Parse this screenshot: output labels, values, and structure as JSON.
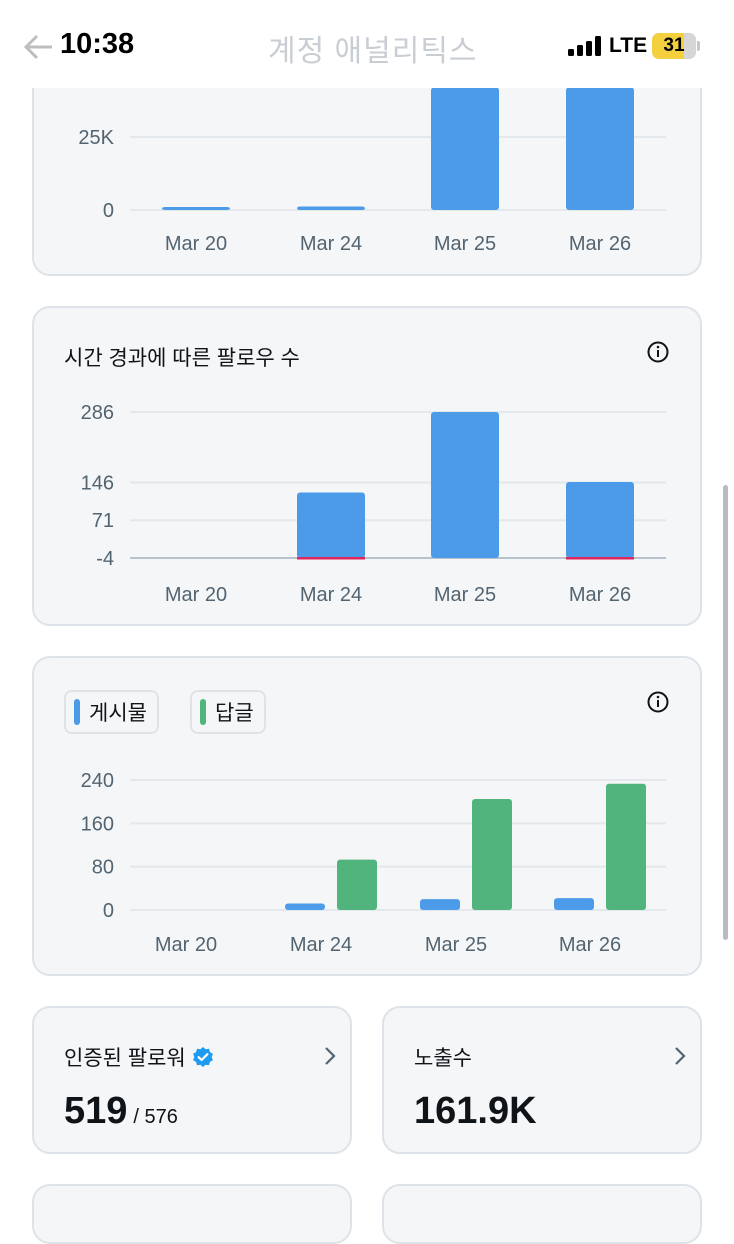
{
  "status_bar": {
    "time": "10:38",
    "network": "LTE",
    "battery": "31",
    "faded_title": "계정 애널리틱스"
  },
  "chart_data": [
    {
      "type": "bar",
      "title": "",
      "categories": [
        "Mar 20",
        "Mar 24",
        "Mar 25",
        "Mar 26"
      ],
      "yticks": [
        "25K",
        "0"
      ],
      "values": [
        300,
        1200,
        42000,
        42000
      ],
      "note": "top of chart cropped by header"
    },
    {
      "type": "bar",
      "title": "시간 경과에 따른 팔로우 수",
      "categories": [
        "Mar 20",
        "Mar 24",
        "Mar 25",
        "Mar 26"
      ],
      "yticks": [
        "286",
        "146",
        "71",
        "-4"
      ],
      "values": [
        0,
        130,
        290,
        151
      ],
      "negative_values": [
        0,
        -1,
        0,
        -1
      ],
      "colors": {
        "positive": "#4c9be8",
        "negative": "#e0245e"
      }
    },
    {
      "type": "bar",
      "title": "",
      "categories": [
        "Mar 20",
        "Mar 24",
        "Mar 25",
        "Mar 26"
      ],
      "yticks": [
        "240",
        "160",
        "80",
        "0"
      ],
      "series": [
        {
          "name": "게시물",
          "values": [
            0,
            12,
            20,
            22
          ],
          "color": "#4c9be8"
        },
        {
          "name": "답글",
          "values": [
            0,
            93,
            205,
            233
          ],
          "color": "#50b47c"
        }
      ]
    }
  ],
  "legend": {
    "posts": "게시물",
    "replies": "답글"
  },
  "stats": {
    "verified_followers": {
      "title": "인증된 팔로워",
      "value": "519",
      "total": "/ 576"
    },
    "impressions": {
      "title": "노출수",
      "value": "161.9K"
    }
  }
}
